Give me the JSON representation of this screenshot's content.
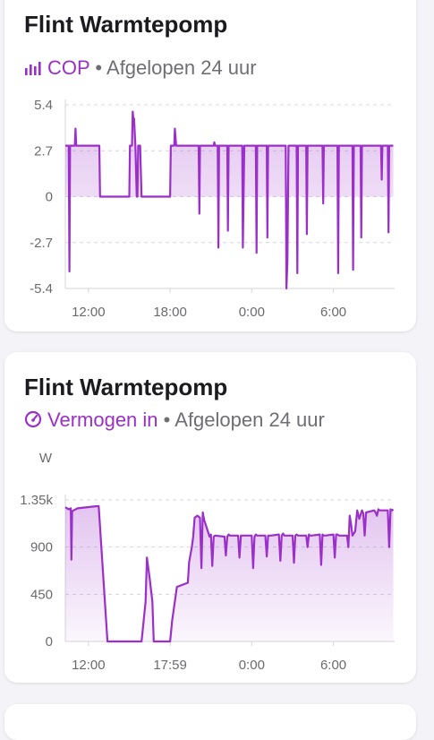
{
  "cards": [
    {
      "title": "Flint Warmtepomp",
      "entity": "COP",
      "period": "Afgelopen 24 uur",
      "separator": "•",
      "icon": "bar-chart-icon"
    },
    {
      "title": "Flint Warmtepomp",
      "entity": "Vermogen in",
      "period": "Afgelopen 24 uur",
      "separator": "•",
      "icon": "gauge-icon"
    }
  ],
  "colors": {
    "accent": "#9b2fc9",
    "fill": "#e7c8f3"
  },
  "chart_data": [
    {
      "type": "area",
      "ylabel": "",
      "ylim": [
        -5.4,
        5.4
      ],
      "y_ticks": [
        "5.4",
        "2.7",
        "0",
        "-2.7",
        "-5.4"
      ],
      "x_ticks": [
        "12:00",
        "18:00",
        "0:00",
        "6:00"
      ],
      "x_range_hours": [
        10.3,
        34.5
      ],
      "x_tick_hours": [
        12,
        18,
        24,
        30
      ],
      "series": [
        {
          "x": [
            10.3,
            10.55,
            10.6,
            10.65,
            10.85,
            11.0,
            11.05,
            11.1,
            11.25,
            12.8,
            12.85,
            15.0,
            15.05,
            15.2,
            15.25,
            15.3,
            15.35,
            15.45,
            15.55,
            15.6,
            15.65,
            15.8,
            15.9,
            15.95,
            16.0,
            18.0,
            18.05,
            18.3,
            18.35,
            18.45,
            18.6,
            18.9,
            19.0,
            20.1,
            20.15,
            20.2,
            20.35,
            21.1,
            21.2,
            21.25,
            21.3,
            21.35,
            21.4,
            21.5,
            21.55,
            21.6,
            22.2,
            22.25,
            22.3,
            22.35,
            22.45,
            23.3,
            23.35,
            23.45,
            23.5,
            24.3,
            24.35,
            24.4,
            24.45,
            24.5,
            25.1,
            25.15,
            25.2,
            25.25,
            25.35,
            26.5,
            26.55,
            26.62,
            26.7,
            26.75,
            27.3,
            27.35,
            27.4,
            27.45,
            27.55,
            28.0,
            28.05,
            28.1,
            28.15,
            28.25,
            29.2,
            29.25,
            29.3,
            29.35,
            29.45,
            30.3,
            30.35,
            30.4,
            30.45,
            30.55,
            31.4,
            31.45,
            31.5,
            31.55,
            31.65,
            32.0,
            32.05,
            32.1,
            32.15,
            32.25,
            33.5,
            33.55,
            33.6,
            33.65,
            33.75,
            34.0,
            34.05,
            34.1,
            34.15,
            34.3,
            34.4
          ],
          "y": [
            3.0,
            3.0,
            -4.4,
            3.0,
            3.0,
            3.0,
            4.0,
            3.0,
            3.0,
            3.0,
            0.0,
            0.0,
            3.0,
            3.0,
            5.0,
            4.6,
            4.6,
            3.0,
            0.0,
            0.0,
            3.0,
            3.0,
            0.0,
            0.0,
            0.0,
            0.0,
            3.0,
            3.0,
            4.0,
            3.0,
            3.0,
            3.0,
            3.0,
            3.0,
            -1.0,
            3.0,
            3.0,
            3.0,
            3.0,
            3.2,
            3.0,
            3.0,
            3.0,
            3.0,
            -3.0,
            3.0,
            3.0,
            -2.0,
            3.0,
            3.0,
            3.0,
            3.0,
            -3.0,
            3.0,
            3.0,
            3.0,
            -3.3,
            3.0,
            3.0,
            3.0,
            3.0,
            -2.4,
            3.0,
            3.0,
            3.0,
            3.0,
            -5.4,
            -3.8,
            3.0,
            3.0,
            3.0,
            -4.5,
            3.0,
            3.0,
            3.0,
            3.0,
            -2.2,
            3.0,
            3.0,
            3.0,
            3.0,
            -0.4,
            3.0,
            3.0,
            3.0,
            3.0,
            -4.5,
            3.0,
            3.0,
            3.0,
            3.0,
            -4.3,
            3.0,
            3.0,
            3.0,
            3.0,
            -2.4,
            3.0,
            3.0,
            3.0,
            3.0,
            1.0,
            3.0,
            3.0,
            3.0,
            3.0,
            -2.1,
            3.0,
            3.0,
            3.0,
            3.0
          ]
        }
      ]
    },
    {
      "type": "area",
      "ylabel": "W",
      "ylim": [
        0,
        1350
      ],
      "y_ticks": [
        "1.35k",
        "900",
        "450",
        "0"
      ],
      "x_ticks": [
        "12:00",
        "17:59",
        "0:00",
        "6:00"
      ],
      "x_range_hours": [
        10.3,
        34.5
      ],
      "x_tick_hours": [
        12,
        18,
        24,
        30
      ],
      "series": [
        {
          "x": [
            10.3,
            10.55,
            10.7,
            10.75,
            10.8,
            10.9,
            11.2,
            12.6,
            12.75,
            13.4,
            15.7,
            15.9,
            16.2,
            16.3,
            16.5,
            16.7,
            16.8,
            18.0,
            18.15,
            18.5,
            19.3,
            19.4,
            19.6,
            19.7,
            19.8,
            20.0,
            20.2,
            20.3,
            20.4,
            20.5,
            20.9,
            21.0,
            21.1,
            21.2,
            21.3,
            22.0,
            22.1,
            22.2,
            22.3,
            22.4,
            23.0,
            23.1,
            23.2,
            23.3,
            23.4,
            24.0,
            24.1,
            24.2,
            24.3,
            24.4,
            25.0,
            25.1,
            25.2,
            25.3,
            25.4,
            26.0,
            26.1,
            26.2,
            26.3,
            26.4,
            27.0,
            27.1,
            27.2,
            27.3,
            27.4,
            28.0,
            28.1,
            28.2,
            28.3,
            28.4,
            29.0,
            29.1,
            29.2,
            29.3,
            29.4,
            30.0,
            30.1,
            30.2,
            30.3,
            30.4,
            31.0,
            31.1,
            31.2,
            31.3,
            31.4,
            31.6,
            31.75,
            31.9,
            32.1,
            32.2,
            32.3,
            32.4,
            33.0,
            33.1,
            33.2,
            33.3,
            33.4,
            34.0,
            34.1,
            34.2,
            34.3,
            34.4
          ],
          "y": [
            1280,
            1260,
            1270,
            780,
            1240,
            1250,
            1270,
            1290,
            1290,
            0,
            0,
            0,
            380,
            800,
            600,
            380,
            0,
            0,
            200,
            520,
            560,
            760,
            900,
            1000,
            1180,
            1200,
            1180,
            700,
            1230,
            1160,
            1000,
            1020,
            720,
            1000,
            1010,
            1000,
            820,
            1000,
            1020,
            1010,
            1010,
            800,
            1010,
            1010,
            1010,
            1010,
            700,
            1000,
            1020,
            1010,
            1010,
            810,
            1010,
            1010,
            1010,
            1020,
            770,
            1010,
            1030,
            1010,
            1010,
            750,
            1010,
            1020,
            1010,
            1010,
            900,
            1020,
            1010,
            1010,
            1020,
            730,
            1020,
            1010,
            1010,
            1020,
            800,
            1020,
            1020,
            1010,
            1010,
            900,
            1200,
            1120,
            1010,
            1050,
            1250,
            1170,
            1250,
            1220,
            1010,
            1230,
            1250,
            1230,
            1200,
            1260,
            1250,
            1250,
            900,
            1260,
            1250,
            1260
          ]
        }
      ]
    }
  ]
}
